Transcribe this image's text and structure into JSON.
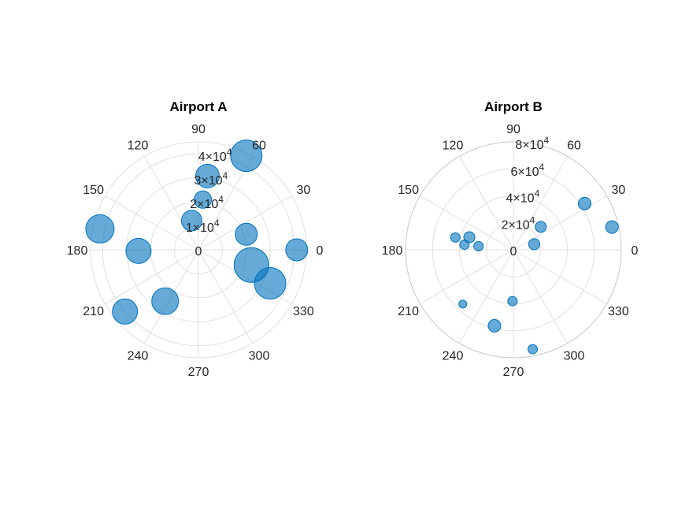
{
  "chart_data": [
    {
      "type": "scatter",
      "subtype": "polar-bubble",
      "title": "Airport A",
      "theta_ticks": [
        "0",
        "30",
        "60",
        "90",
        "120",
        "150",
        "180",
        "210",
        "240",
        "270",
        "300",
        "330"
      ],
      "r_tick_labels": [
        "0",
        "1×10^4",
        "2×10^4",
        "3×10^4",
        "4×10^4"
      ],
      "r_ticks": [
        0,
        10000,
        20000,
        30000,
        40000
      ],
      "rlim": [
        0,
        45000
      ],
      "outer_ring": false,
      "marker_color": "#0072BD",
      "points": [
        {
          "theta": 0,
          "r": 41000,
          "size": 14
        },
        {
          "theta": 63,
          "r": 44000,
          "size": 20
        },
        {
          "theta": 83,
          "r": 31000,
          "size": 15
        },
        {
          "theta": 85,
          "r": 21000,
          "size": 11
        },
        {
          "theta": 103,
          "r": 12500,
          "size": 13
        },
        {
          "theta": 18,
          "r": 21000,
          "size": 14
        },
        {
          "theta": 344,
          "r": 23000,
          "size": 22
        },
        {
          "theta": 335,
          "r": 33000,
          "size": 20
        },
        {
          "theta": 168,
          "r": 42000,
          "size": 18
        },
        {
          "theta": 181,
          "r": 25000,
          "size": 16
        },
        {
          "theta": 237,
          "r": 25500,
          "size": 17
        },
        {
          "theta": 220,
          "r": 40000,
          "size": 16
        }
      ]
    },
    {
      "type": "scatter",
      "subtype": "polar-bubble",
      "title": "Airport B",
      "theta_ticks": [
        "0",
        "30",
        "60",
        "90",
        "120",
        "150",
        "180",
        "210",
        "240",
        "270",
        "300",
        "330"
      ],
      "r_tick_labels": [
        "0",
        "2×10^4",
        "4×10^4",
        "6×10^4",
        "8×10^4"
      ],
      "r_ticks": [
        0,
        20000,
        40000,
        60000,
        80000
      ],
      "rlim": [
        0,
        80000
      ],
      "outer_ring": true,
      "marker_color": "#0072BD",
      "points": [
        {
          "theta": 33,
          "r": 63000,
          "size": 8
        },
        {
          "theta": 13,
          "r": 75000,
          "size": 8
        },
        {
          "theta": 40,
          "r": 26500,
          "size": 7
        },
        {
          "theta": 15,
          "r": 16000,
          "size": 7
        },
        {
          "theta": 168,
          "r": 44000,
          "size": 6
        },
        {
          "theta": 164,
          "r": 34000,
          "size": 7
        },
        {
          "theta": 174,
          "r": 36500,
          "size": 6
        },
        {
          "theta": 174,
          "r": 26000,
          "size": 6
        },
        {
          "theta": 269,
          "r": 38000,
          "size": 6
        },
        {
          "theta": 256,
          "r": 58000,
          "size": 8
        },
        {
          "theta": 227,
          "r": 55000,
          "size": 5
        },
        {
          "theta": 281,
          "r": 75000,
          "size": 6
        }
      ]
    }
  ]
}
